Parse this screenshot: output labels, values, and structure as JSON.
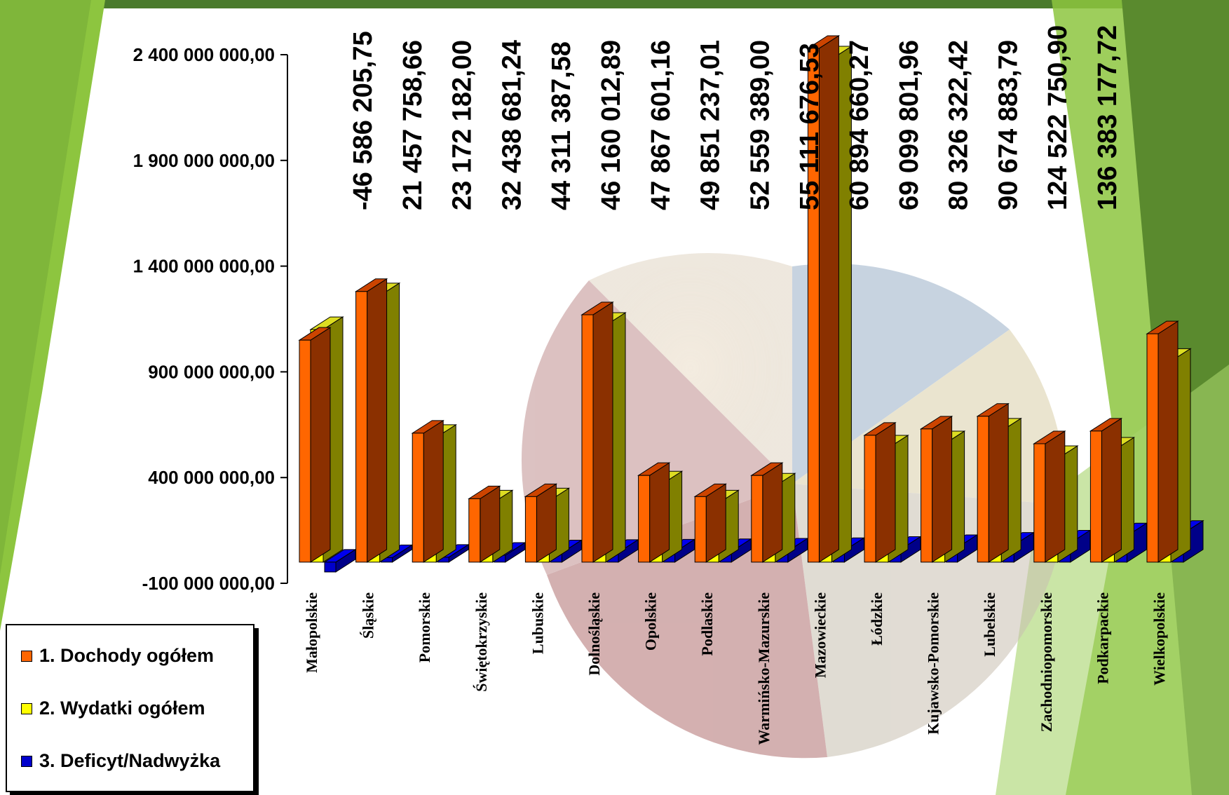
{
  "chart_data": {
    "type": "bar",
    "categories": [
      "Małopolskie",
      "Śląskie",
      "Pomorskie",
      "Świętokrzyskie",
      "Lubuskie",
      "Dolnośląskie",
      "Opolskie",
      "Podlaskie",
      "Warmińsko-Mazurskie",
      "Mazowieckie",
      "Łódzkie",
      "Kujawsko-Pomorskie",
      "Lubelskie",
      "Zachodniopomorskie",
      "Podkarpackie",
      "Wielkopolskie"
    ],
    "series": [
      {
        "name": "1. Dochody ogółem",
        "color": "#ff6600",
        "values": [
          1050000000,
          1280000000,
          610000000,
          300000000,
          310000000,
          1170000000,
          410000000,
          310000000,
          410000000,
          2430000000,
          600000000,
          630000000,
          690000000,
          560000000,
          620000000,
          1080000000
        ]
      },
      {
        "name": "2. Wydatki ogółem",
        "color": "#ffff00",
        "values": [
          1100000000,
          1260000000,
          590000000,
          280000000,
          290000000,
          1120000000,
          370000000,
          280000000,
          360000000,
          2380000000,
          540000000,
          560000000,
          620000000,
          490000000,
          530000000,
          950000000
        ]
      },
      {
        "name": "3. Deficyt/Nadwyżka",
        "color": "#0000cc",
        "values": [
          -46586205.75,
          21457758.66,
          23172182.0,
          32438681.24,
          44311387.58,
          46160012.89,
          47867601.16,
          49851237.01,
          52559389.0,
          55111676.53,
          60894660.27,
          69099801.96,
          80326322.42,
          90674883.79,
          124522750.9,
          136383177.72
        ]
      }
    ],
    "top_labels": [
      "-46 586 205,75",
      "21 457 758,66",
      "23 172 182,00",
      "32 438 681,24",
      "44 311 387,58",
      "46 160 012,89",
      "47 867 601,16",
      "49 851 237,01",
      "52 559 389,00",
      "55 111 676,53",
      "60 894 660,27",
      "69 099 801,96",
      "80 326 322,42",
      "90 674 883,79",
      "124 522 750,90",
      "136 383 177,72"
    ],
    "highlight_label_index": 11,
    "highlight_color": "#3366ff",
    "y_ticks": [
      {
        "value": -100000000,
        "label": "-100 000 000,00"
      },
      {
        "value": 400000000,
        "label": "400 000 000,00"
      },
      {
        "value": 900000000,
        "label": "900 000 000,00"
      },
      {
        "value": 1400000000,
        "label": "1 400 000 000,00"
      },
      {
        "value": 1900000000,
        "label": "1 900 000 000,00"
      },
      {
        "value": 2400000000,
        "label": "2 400 000 000,00"
      }
    ],
    "ylim": [
      -100000000,
      2400000000
    ],
    "legend_position": "bottom-left",
    "colors": {
      "frame_green": "#4a7a2c",
      "light_green": "#8dc53f",
      "bar_side": "#808000",
      "dark_side": "#8b3000"
    }
  }
}
